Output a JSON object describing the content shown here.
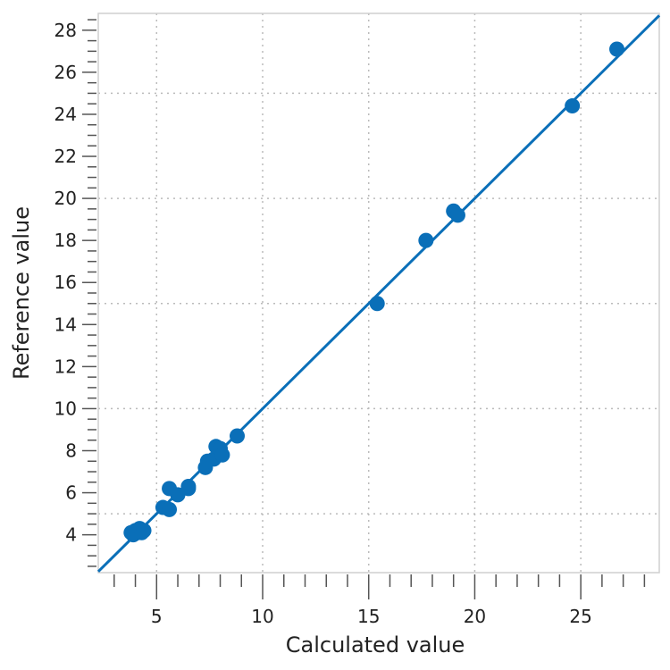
{
  "chart_data": {
    "type": "scatter",
    "title": "",
    "xlabel": "Calculated value",
    "ylabel": "Reference value",
    "xlim": [
      2.25,
      28.7
    ],
    "ylim": [
      2.2,
      28.8
    ],
    "xticks": [
      5,
      10,
      15,
      20,
      25
    ],
    "yticks": [
      4,
      6,
      8,
      10,
      12,
      14,
      16,
      18,
      20,
      22,
      24,
      26,
      28
    ],
    "grid": true,
    "grid_lines": [
      5,
      10,
      15,
      20,
      25
    ],
    "color": "#0a6fb8",
    "fit_line": {
      "slope": 1.0,
      "intercept": 0.0
    },
    "points": [
      {
        "x": 3.8,
        "y": 4.1
      },
      {
        "x": 3.9,
        "y": 4.0
      },
      {
        "x": 4.0,
        "y": 4.2
      },
      {
        "x": 4.1,
        "y": 4.1
      },
      {
        "x": 4.2,
        "y": 4.3
      },
      {
        "x": 4.3,
        "y": 4.1
      },
      {
        "x": 4.4,
        "y": 4.2
      },
      {
        "x": 5.3,
        "y": 5.3
      },
      {
        "x": 5.6,
        "y": 5.2
      },
      {
        "x": 5.6,
        "y": 6.2
      },
      {
        "x": 6.0,
        "y": 5.9
      },
      {
        "x": 6.5,
        "y": 6.2
      },
      {
        "x": 6.5,
        "y": 6.3
      },
      {
        "x": 7.3,
        "y": 7.2
      },
      {
        "x": 7.4,
        "y": 7.5
      },
      {
        "x": 7.7,
        "y": 7.6
      },
      {
        "x": 7.8,
        "y": 8.2
      },
      {
        "x": 8.0,
        "y": 8.1
      },
      {
        "x": 8.1,
        "y": 7.8
      },
      {
        "x": 8.8,
        "y": 8.7
      },
      {
        "x": 15.4,
        "y": 15.0
      },
      {
        "x": 17.7,
        "y": 18.0
      },
      {
        "x": 19.0,
        "y": 19.4
      },
      {
        "x": 19.2,
        "y": 19.2
      },
      {
        "x": 24.6,
        "y": 24.4
      },
      {
        "x": 26.7,
        "y": 27.1
      }
    ]
  }
}
